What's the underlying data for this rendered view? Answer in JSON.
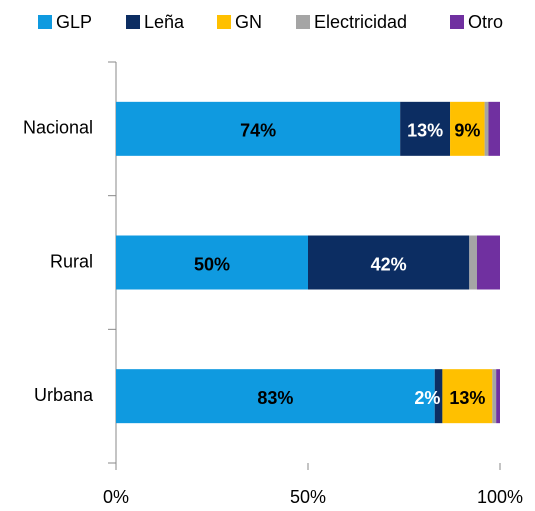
{
  "chart_data": {
    "type": "stacked-barh",
    "categories": [
      "Nacional",
      "Rural",
      "Urbana"
    ],
    "series": [
      {
        "name": "GLP",
        "color": "#0f9ae0",
        "values": [
          74,
          50,
          83
        ],
        "value_labels": [
          "74%",
          "50%",
          "83%"
        ]
      },
      {
        "name": "Leña",
        "color": "#0c2d62",
        "values": [
          13,
          42,
          2
        ],
        "value_labels": [
          "13%",
          "42%",
          "2%"
        ]
      },
      {
        "name": "GN",
        "color": "#ffc000",
        "values": [
          9,
          0,
          13
        ],
        "value_labels": [
          "9%",
          null,
          "13%"
        ]
      },
      {
        "name": "Electricidad",
        "color": "#a5a5a5",
        "values": [
          1,
          2,
          1
        ]
      },
      {
        "name": "Otro",
        "color": "#7030a0",
        "values": [
          3,
          6,
          1
        ]
      }
    ],
    "xlim": [
      0,
      100
    ],
    "xticks": [
      {
        "value": 0,
        "label": "0%"
      },
      {
        "value": 50,
        "label": "50%"
      },
      {
        "value": 100,
        "label": "100%"
      }
    ],
    "legend": "top"
  }
}
